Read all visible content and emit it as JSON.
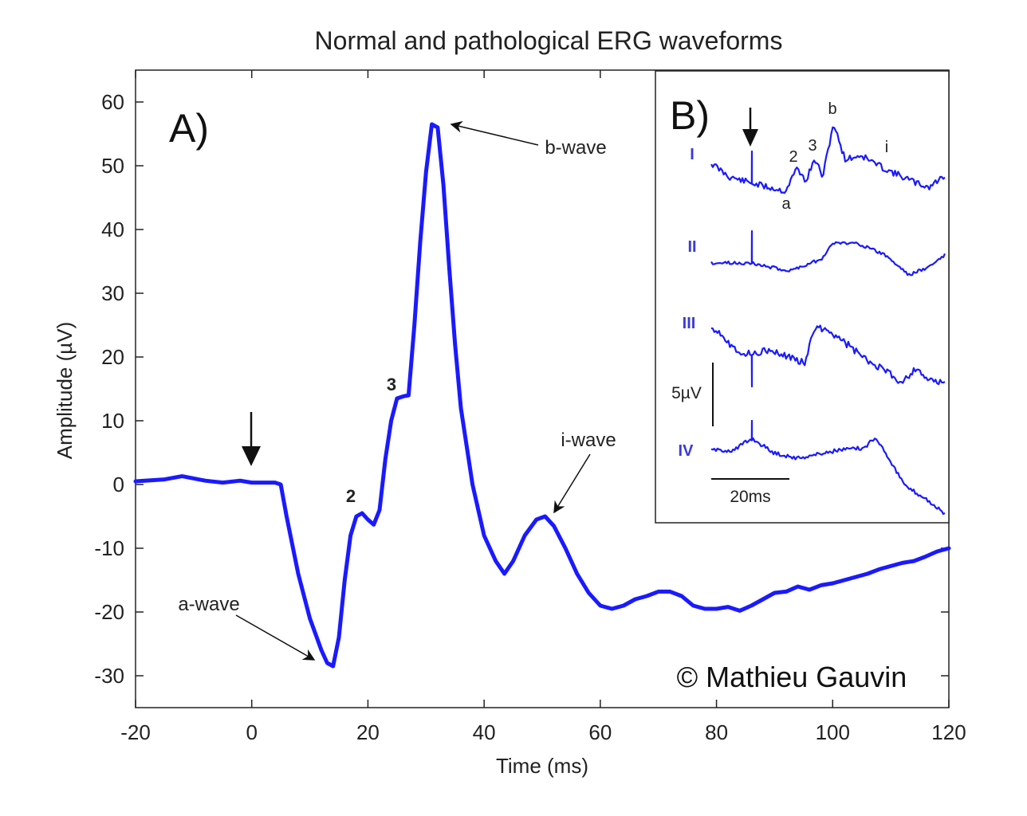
{
  "chart_data": [
    {
      "panel": "A)",
      "type": "line",
      "title": "Normal and pathological ERG waveforms",
      "xlabel": "Time (ms)",
      "ylabel": "Amplitude (µV)",
      "xlim": [
        -20,
        120
      ],
      "ylim": [
        -35,
        65
      ],
      "xticks": [
        -20,
        0,
        20,
        40,
        60,
        80,
        100,
        120
      ],
      "yticks": [
        -30,
        -20,
        -10,
        0,
        10,
        20,
        30,
        40,
        50,
        60
      ],
      "grid": false,
      "color": "#1a1aff",
      "series": [
        {
          "x": [
            -20,
            -15,
            -12,
            -8,
            -5,
            -2,
            0,
            2,
            4,
            5,
            6,
            8,
            10,
            12,
            13,
            14,
            15,
            16,
            17,
            18,
            19,
            20,
            21,
            22,
            23,
            24,
            25,
            26,
            27,
            28,
            29,
            30,
            31,
            32,
            33,
            34,
            35,
            36,
            38,
            40,
            42,
            43.5,
            45,
            47,
            49,
            50.5,
            52,
            54,
            56,
            58,
            60,
            62,
            64,
            66,
            68,
            70,
            72,
            74,
            76,
            78,
            80,
            82,
            84,
            86,
            88,
            90,
            92,
            94,
            96,
            98,
            100,
            102,
            104,
            106,
            108,
            110,
            112,
            114,
            116,
            118,
            120
          ],
          "y": [
            0.5,
            0.8,
            1.3,
            0.6,
            0.3,
            0.6,
            0.3,
            0.3,
            0.3,
            0,
            -5,
            -14,
            -21,
            -26,
            -28,
            -28.5,
            -24,
            -15,
            -8,
            -5,
            -4.5,
            -5.5,
            -6.3,
            -4,
            4,
            10,
            13.5,
            13.8,
            14,
            25,
            38,
            49,
            56.5,
            56,
            47,
            34,
            22,
            12,
            0,
            -8,
            -12,
            -14,
            -12,
            -8,
            -5.5,
            -5,
            -6.5,
            -10,
            -14,
            -17,
            -19,
            -19.5,
            -19,
            -18,
            -17.5,
            -16.8,
            -16.8,
            -17.5,
            -19,
            -19.5,
            -19.5,
            -19.2,
            -19.8,
            -19,
            -18,
            -17,
            -16.8,
            -16,
            -16.5,
            -15.8,
            -15.5,
            -15,
            -14.5,
            -14,
            -13.3,
            -12.8,
            -12.3,
            -12,
            -11.3,
            -10.5,
            -10
          ]
        }
      ],
      "annotations": [
        {
          "text": "a-wave",
          "x": 14,
          "y": -28.5
        },
        {
          "text": "b-wave",
          "x": 31.5,
          "y": 56.5
        },
        {
          "text": "i-wave",
          "x": 50.5,
          "y": -5
        },
        {
          "text": "2",
          "x": 19,
          "y": -4.5
        },
        {
          "text": "3",
          "x": 26,
          "y": 13.5
        }
      ],
      "stimulus_arrow_x": 0
    },
    {
      "panel": "B)",
      "type": "line",
      "traces": [
        "I",
        "II",
        "III",
        "IV"
      ],
      "scale_bars": {
        "amplitude": "5µV",
        "time": "20ms"
      },
      "labels_I": [
        "a",
        "2",
        "3",
        "b",
        "i"
      ],
      "color": "#1a1aff"
    }
  ],
  "watermark": "© Mathieu Gauvin"
}
